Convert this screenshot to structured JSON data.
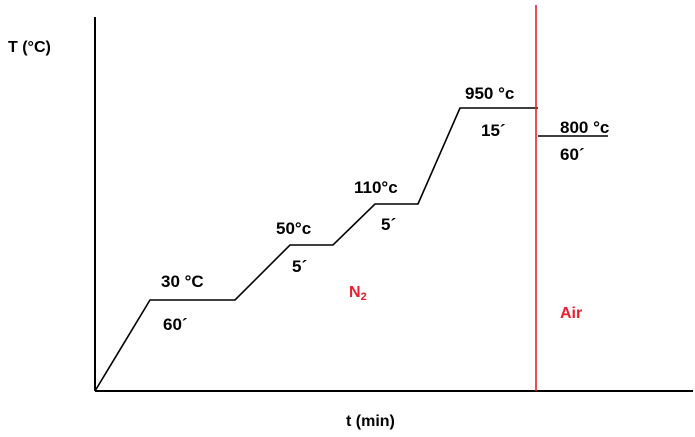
{
  "axes": {
    "y_label": "T (°C)",
    "x_label": "t (min)"
  },
  "steps": [
    {
      "temperature": "30 °C",
      "duration": "60´"
    },
    {
      "temperature": "50°c",
      "duration": "5´"
    },
    {
      "temperature": "110°c",
      "duration": "5´"
    },
    {
      "temperature": "950 °c",
      "duration": "15´"
    },
    {
      "temperature": "800 °c",
      "duration": "60´"
    }
  ],
  "regions": {
    "inert": "N",
    "inert_subscript": "2",
    "air": "Air"
  },
  "colors": {
    "line": "#000000",
    "accent": "#e8202c"
  }
}
